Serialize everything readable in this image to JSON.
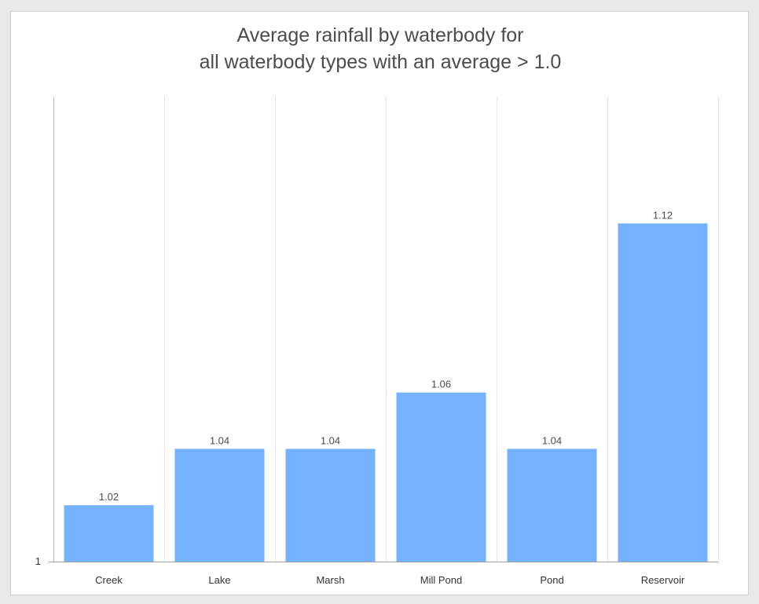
{
  "chart_data": {
    "type": "bar",
    "title_line1": "Average rainfall by waterbody for",
    "title_line2": "all waterbody types with an average > 1.0",
    "categories": [
      "Creek",
      "Lake",
      "Marsh",
      "Mill Pond",
      "Pond",
      "Reservoir"
    ],
    "values": [
      1.02,
      1.04,
      1.04,
      1.06,
      1.04,
      1.12
    ],
    "data_labels": [
      "1.02",
      "1.04",
      "1.04",
      "1.06",
      "1.04",
      "1.12"
    ],
    "y_tick_labels": [
      "1"
    ],
    "y_ticks": [
      1
    ],
    "ylim": [
      1,
      1.165
    ],
    "xlabel": "",
    "ylabel": "",
    "grid": "vertical",
    "legend": "none",
    "bar_color": "#74b1ff"
  }
}
